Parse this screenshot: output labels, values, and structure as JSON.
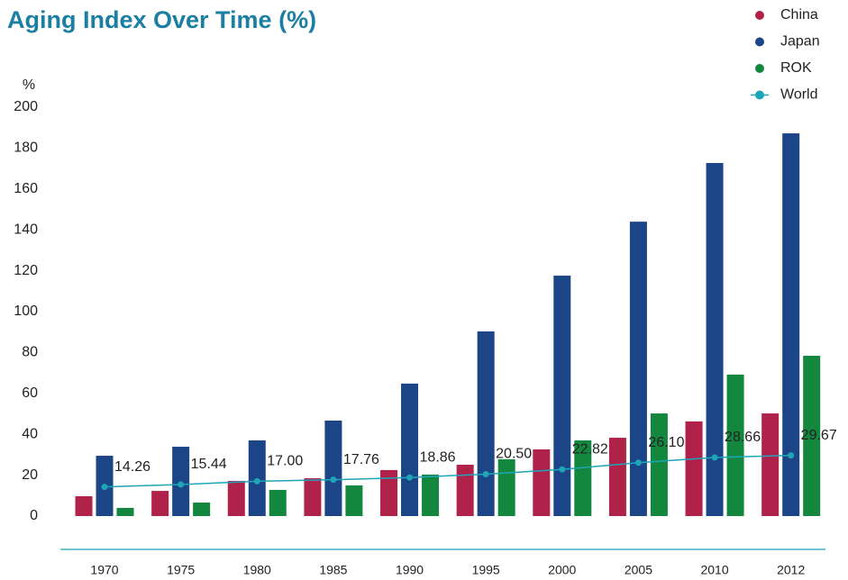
{
  "chart_data": {
    "type": "bar",
    "title": "Aging Index Over Time (%)",
    "y_label": "%",
    "categories": [
      "1970",
      "1975",
      "1980",
      "1985",
      "1990",
      "1995",
      "2000",
      "2005",
      "2010",
      "2012"
    ],
    "series": [
      {
        "name": "China",
        "color": "#b0224a",
        "values": [
          9.7,
          12.3,
          17.2,
          18.5,
          22.5,
          25.1,
          32.6,
          38.3,
          46.3,
          50.2
        ]
      },
      {
        "name": "Japan",
        "color": "#1c4587",
        "values": [
          29.5,
          33.9,
          37,
          46.7,
          64.8,
          90.3,
          117.6,
          144,
          172.7,
          187.2
        ]
      },
      {
        "name": "ROK",
        "color": "#13873e",
        "values": [
          4,
          6.6,
          12.8,
          15,
          20.3,
          27.8,
          37,
          50.2,
          69.2,
          78.4
        ]
      },
      {
        "name": "World",
        "type": "line",
        "color": "#1fa5b8",
        "values": [
          14.26,
          15.44,
          17.0,
          17.76,
          18.86,
          20.5,
          22.82,
          26.1,
          28.66,
          29.67
        ],
        "value_labels": [
          "14.26",
          "15.44",
          "17.00",
          "17.76",
          "18.86",
          "20.50",
          "22.82",
          "26.10",
          "28.66",
          "29.67"
        ]
      }
    ],
    "ylim": [
      0,
      200
    ],
    "yticks": [
      0,
      20,
      40,
      60,
      80,
      100,
      120,
      140,
      160,
      180,
      200
    ],
    "legend": "top-right"
  }
}
